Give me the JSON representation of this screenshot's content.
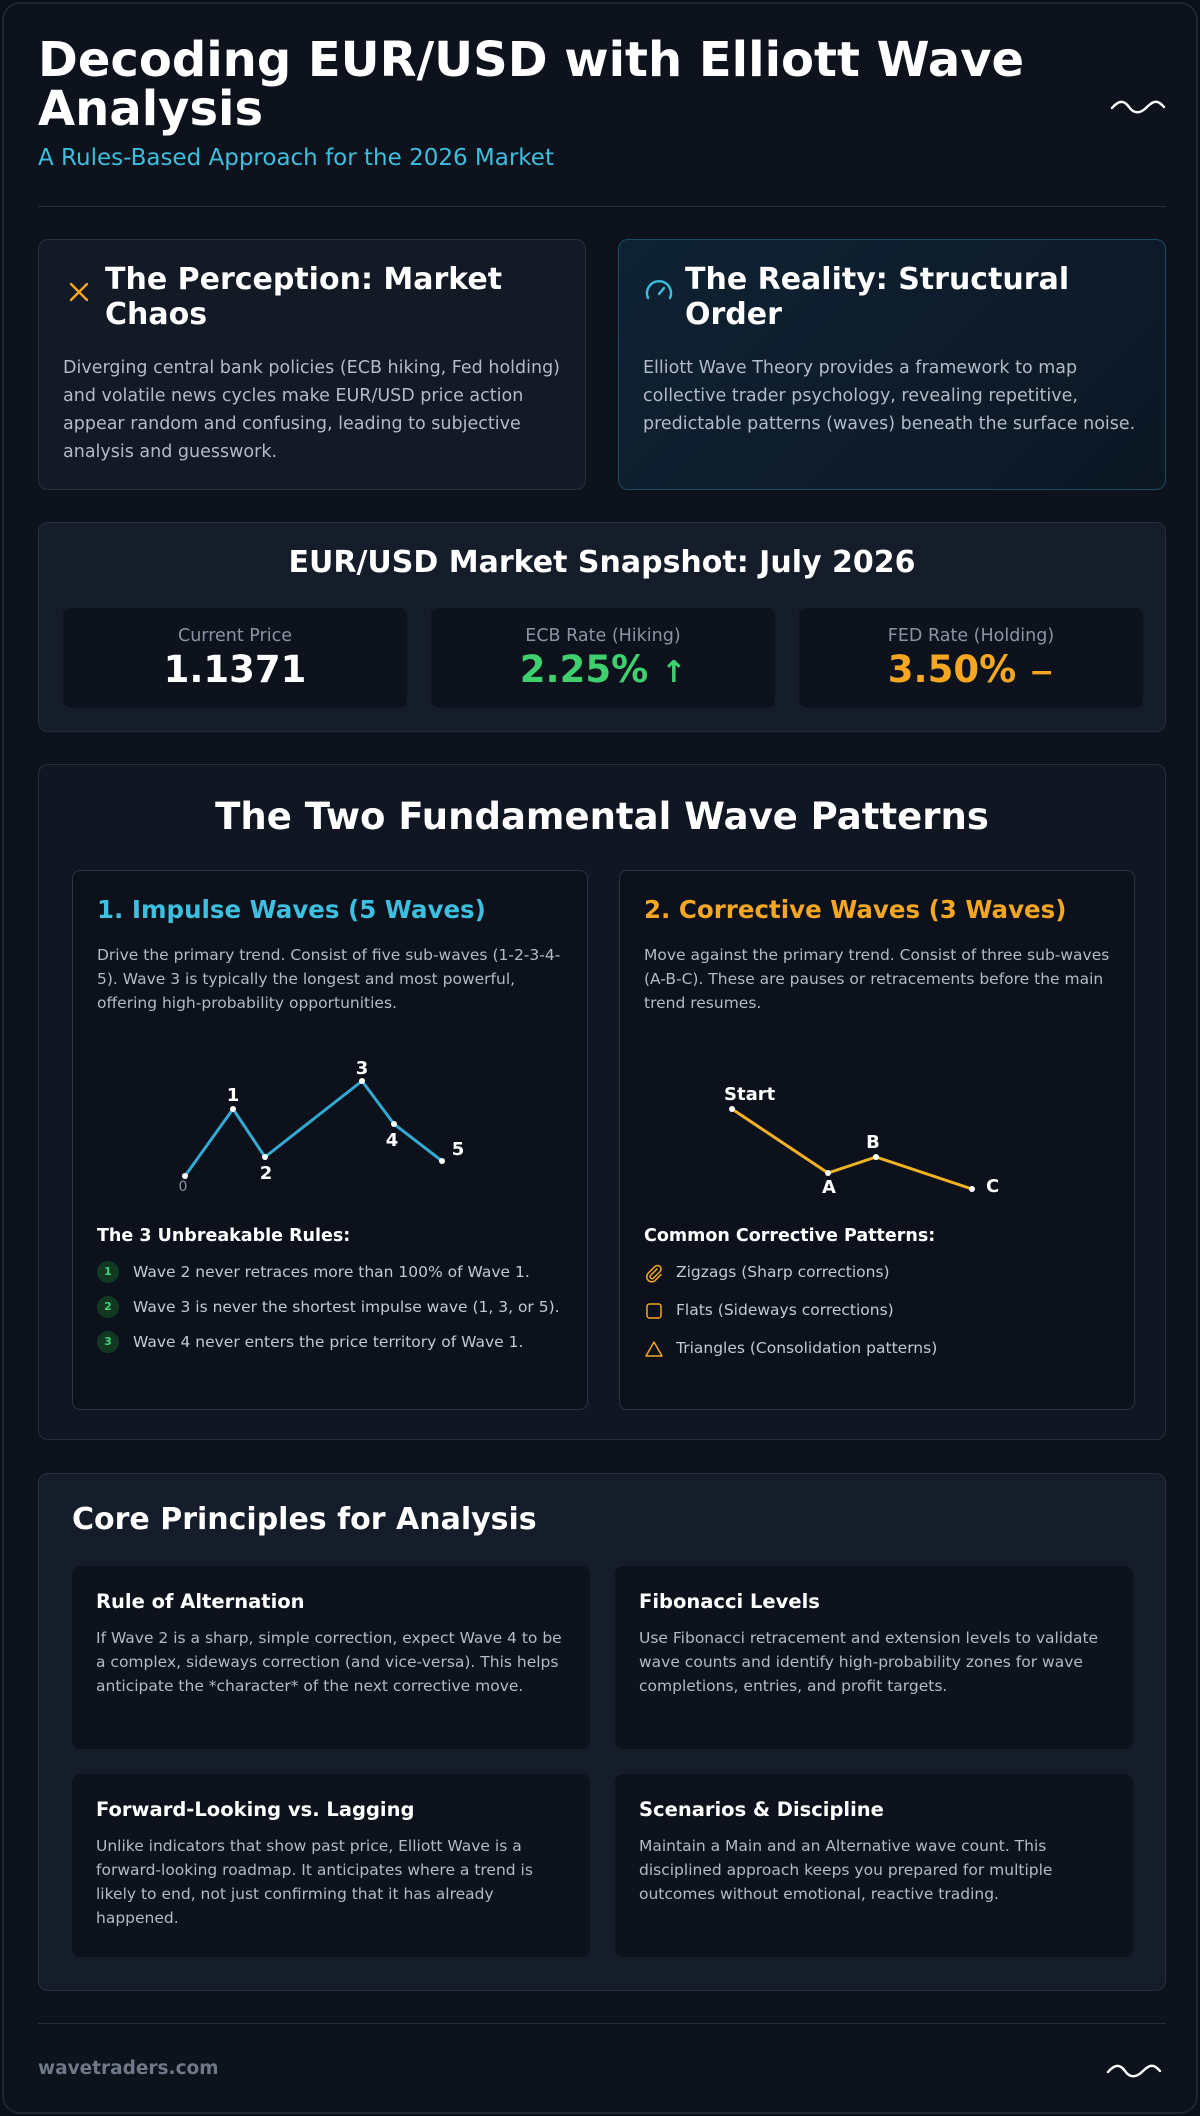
{
  "header": {
    "title": "Decoding EUR/USD with Elliott Wave Analysis",
    "subtitle": "A Rules-Based Approach for the 2026 Market"
  },
  "perception": {
    "title": "The Perception: Market Chaos",
    "body": "Diverging central bank policies (ECB hiking, Fed holding) and volatile news cycles make EUR/USD price action appear random and confusing, leading to subjective analysis and guesswork.",
    "icon": "x-icon"
  },
  "reality": {
    "title": "The Reality: Structural Order",
    "body": "Elliott Wave Theory provides a framework to map collective trader psychology, revealing repetitive, predictable patterns (waves) beneath the surface noise.",
    "icon": "gauge-icon"
  },
  "snapshot": {
    "title": "EUR/USD Market Snapshot: July 2026",
    "metrics": [
      {
        "label": "Current Price",
        "value": "1.1371",
        "indicator": "",
        "color": "#ffffff"
      },
      {
        "label": "ECB Rate (Hiking)",
        "value": "2.25%",
        "indicator": "↑",
        "color": "#3fcf6e"
      },
      {
        "label": "FED Rate (Holding)",
        "value": "3.50%",
        "indicator": "−",
        "color": "#f5a623"
      }
    ]
  },
  "waves": {
    "title": "The Two Fundamental Wave Patterns",
    "impulse": {
      "title": "1. Impulse Waves (5 Waves)",
      "desc": "Drive the primary trend. Consist of five sub-waves (1-2-3-4-5). Wave 3 is typically the longest and most powerful, offering high-probability opportunities.",
      "color": "#3dbfe0",
      "labels": [
        "0",
        "1",
        "2",
        "3",
        "4",
        "5"
      ],
      "rules_title": "The 3 Unbreakable Rules:",
      "rules": [
        {
          "num": "1",
          "text": "Wave 2 never retraces more than 100% of Wave 1."
        },
        {
          "num": "2",
          "text": "Wave 3 is never the shortest impulse wave (1, 3, or 5)."
        },
        {
          "num": "3",
          "text": "Wave 4 never enters the price territory of Wave 1."
        }
      ]
    },
    "corrective": {
      "title": "2. Corrective Waves (3 Waves)",
      "desc": "Move against the primary trend. Consist of three sub-waves (A-B-C). These are pauses or retracements before the main trend resumes.",
      "color": "#f5a623",
      "labels": [
        "Start",
        "A",
        "B",
        "C"
      ],
      "patterns_title": "Common Corrective Patterns:",
      "patterns": [
        {
          "icon": "paperclip-icon",
          "text": "Zigzags (Sharp corrections)"
        },
        {
          "icon": "square-icon",
          "text": "Flats (Sideways corrections)"
        },
        {
          "icon": "triangle-icon",
          "text": "Triangles (Consolidation patterns)"
        }
      ]
    }
  },
  "core": {
    "title": "Core Principles for Analysis",
    "principles": [
      {
        "title": "Rule of Alternation",
        "body": "If Wave 2 is a sharp, simple correction, expect Wave 4 to be a complex, sideways correction (and vice-versa). This helps anticipate the *character* of the next corrective move."
      },
      {
        "title": "Fibonacci Levels",
        "body": "Use Fibonacci retracement and extension levels to validate wave counts and identify high-probability zones for wave completions, entries, and profit targets."
      },
      {
        "title": "Forward-Looking vs. Lagging",
        "body": "Unlike indicators that show past price, Elliott Wave is a forward-looking roadmap. It anticipates where a trend is likely to end, not just confirming that it has already happened."
      },
      {
        "title": "Scenarios & Discipline",
        "body": "Maintain a Main and an Alternative wave count. This disciplined approach keeps you prepared for multiple outcomes without emotional, reactive trading."
      }
    ]
  },
  "footer": {
    "site": "wavetraders.com",
    "icon": "wave-icon"
  }
}
